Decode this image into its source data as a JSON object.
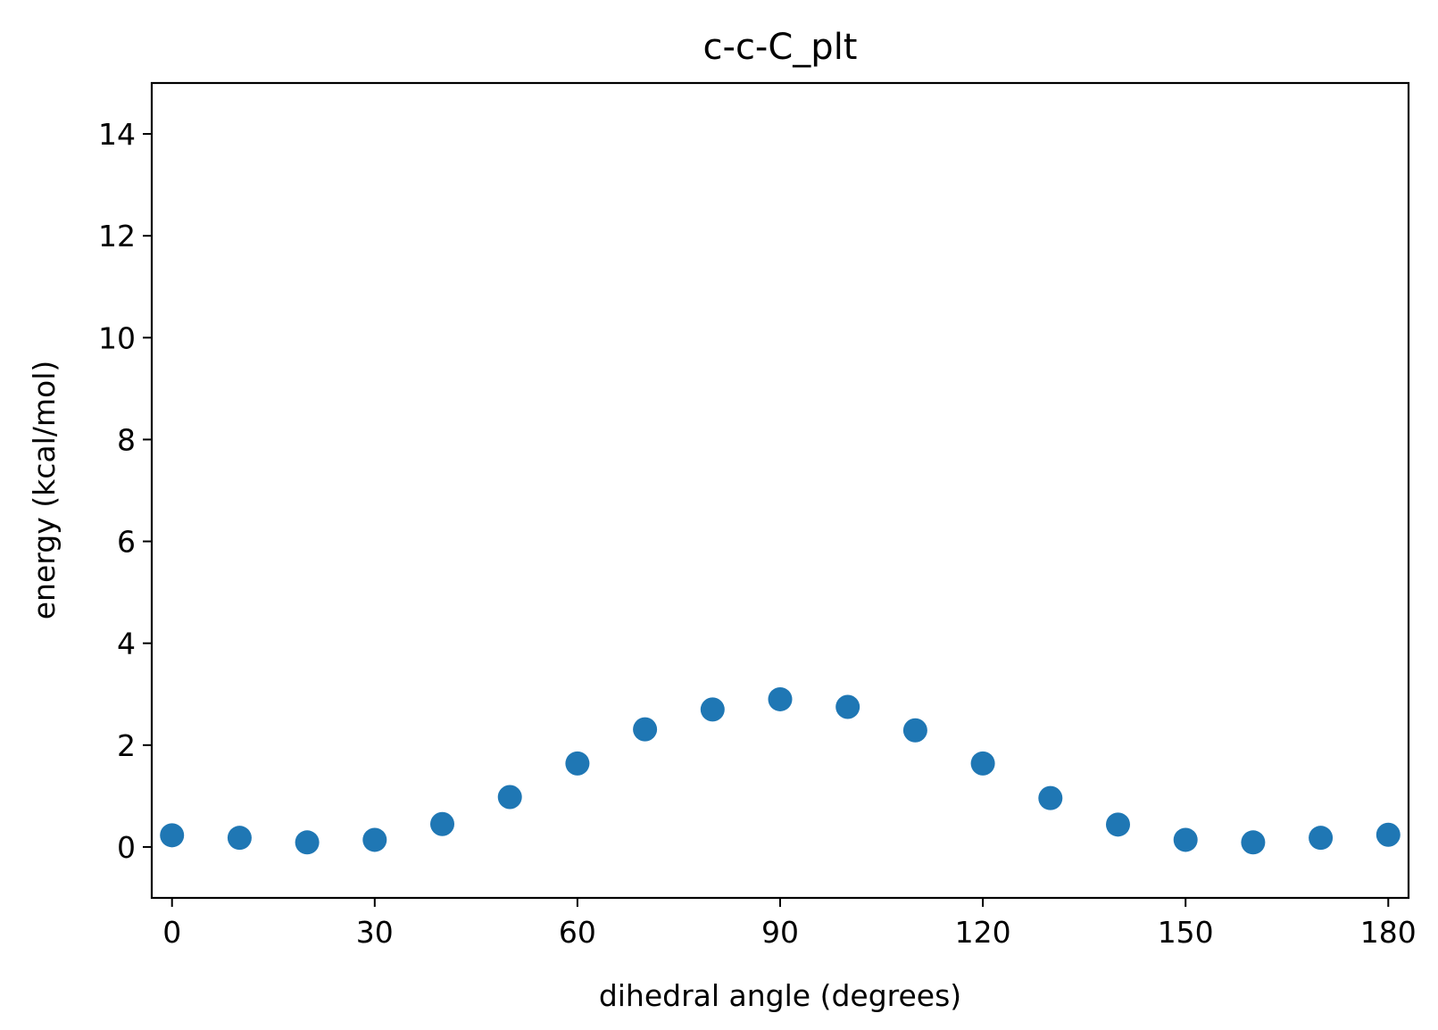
{
  "chart_data": {
    "type": "scatter",
    "title": "c-c-C_plt",
    "xlabel": "dihedral angle (degrees)",
    "ylabel": "energy (kcal/mol)",
    "xlim": [
      -3,
      183
    ],
    "ylim": [
      -1,
      15
    ],
    "xticks": [
      0,
      30,
      60,
      90,
      120,
      150,
      180
    ],
    "xtick_labels": [
      "0",
      "30",
      "60",
      "90",
      "120",
      "150",
      "180"
    ],
    "yticks": [
      0,
      2,
      4,
      6,
      8,
      10,
      12,
      14
    ],
    "ytick_labels": [
      "0",
      "2",
      "4",
      "6",
      "8",
      "10",
      "12",
      "14"
    ],
    "grid": false,
    "series": [
      {
        "color": "#1f77b4",
        "x": [
          0,
          10,
          20,
          30,
          40,
          50,
          60,
          70,
          80,
          90,
          100,
          110,
          120,
          130,
          140,
          150,
          160,
          170,
          180
        ],
        "y": [
          0.23,
          0.18,
          0.09,
          0.14,
          0.45,
          0.98,
          1.64,
          2.31,
          2.7,
          2.9,
          2.75,
          2.29,
          1.64,
          0.96,
          0.44,
          0.14,
          0.09,
          0.18,
          0.24
        ]
      }
    ]
  }
}
